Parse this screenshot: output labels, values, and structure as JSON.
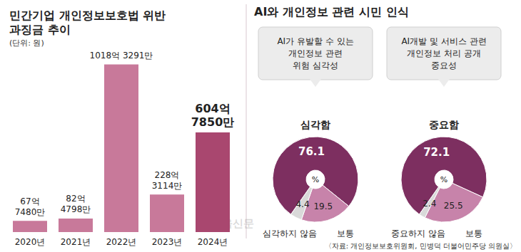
{
  "chart_data": [
    {
      "type": "bar",
      "title": "민간기업 개인정보보호법 위반\n과징금 추이",
      "subtitle": "(단위: 원)",
      "categories": [
        "2020년",
        "2021년",
        "2022년",
        "2023년",
        "2024년"
      ],
      "values": [
        6774800000,
        8247980000,
        101832910000,
        22831140000,
        60478500000
      ],
      "value_labels": [
        "67억\n7480만",
        "82억\n4798만",
        "1018억 3291만",
        "228억\n3114만",
        "604억\n7850만"
      ],
      "colors": [
        "#c8799a",
        "#c8799a",
        "#c8799a",
        "#c8799a",
        "#a9476f"
      ],
      "ylim": [
        0,
        115000000000
      ],
      "data_labels": true,
      "tick_labels": "x",
      "grid": false
    },
    {
      "type": "pie",
      "title": "AI가 유발할 수 있는\n개인정보 관련\n위험 심각성",
      "categories": [
        "심각함",
        "보통",
        "심각하지 않음"
      ],
      "values": [
        76.1,
        19.5,
        4.4
      ],
      "colors": [
        "#7d2f60",
        "#c783aa",
        "#d9d9d9"
      ],
      "center_label": "%",
      "data_labels": true
    },
    {
      "type": "pie",
      "title": "AI개발 및 서비스 관련\n개인정보 처리 공개\n중요성",
      "categories": [
        "중요함",
        "보통",
        "중요하지 않음"
      ],
      "values": [
        72.1,
        25.5,
        2.4
      ],
      "colors": [
        "#7d2f60",
        "#c783aa",
        "#d9d9d9"
      ],
      "center_label": "%",
      "data_labels": true
    }
  ],
  "group_title": "AI와 개인정보 관련 시민 인식",
  "source": "〈자료: 개인정보보호위원회, 민병덕 더불어민주당 의원실〉",
  "watermark": "서울신문"
}
